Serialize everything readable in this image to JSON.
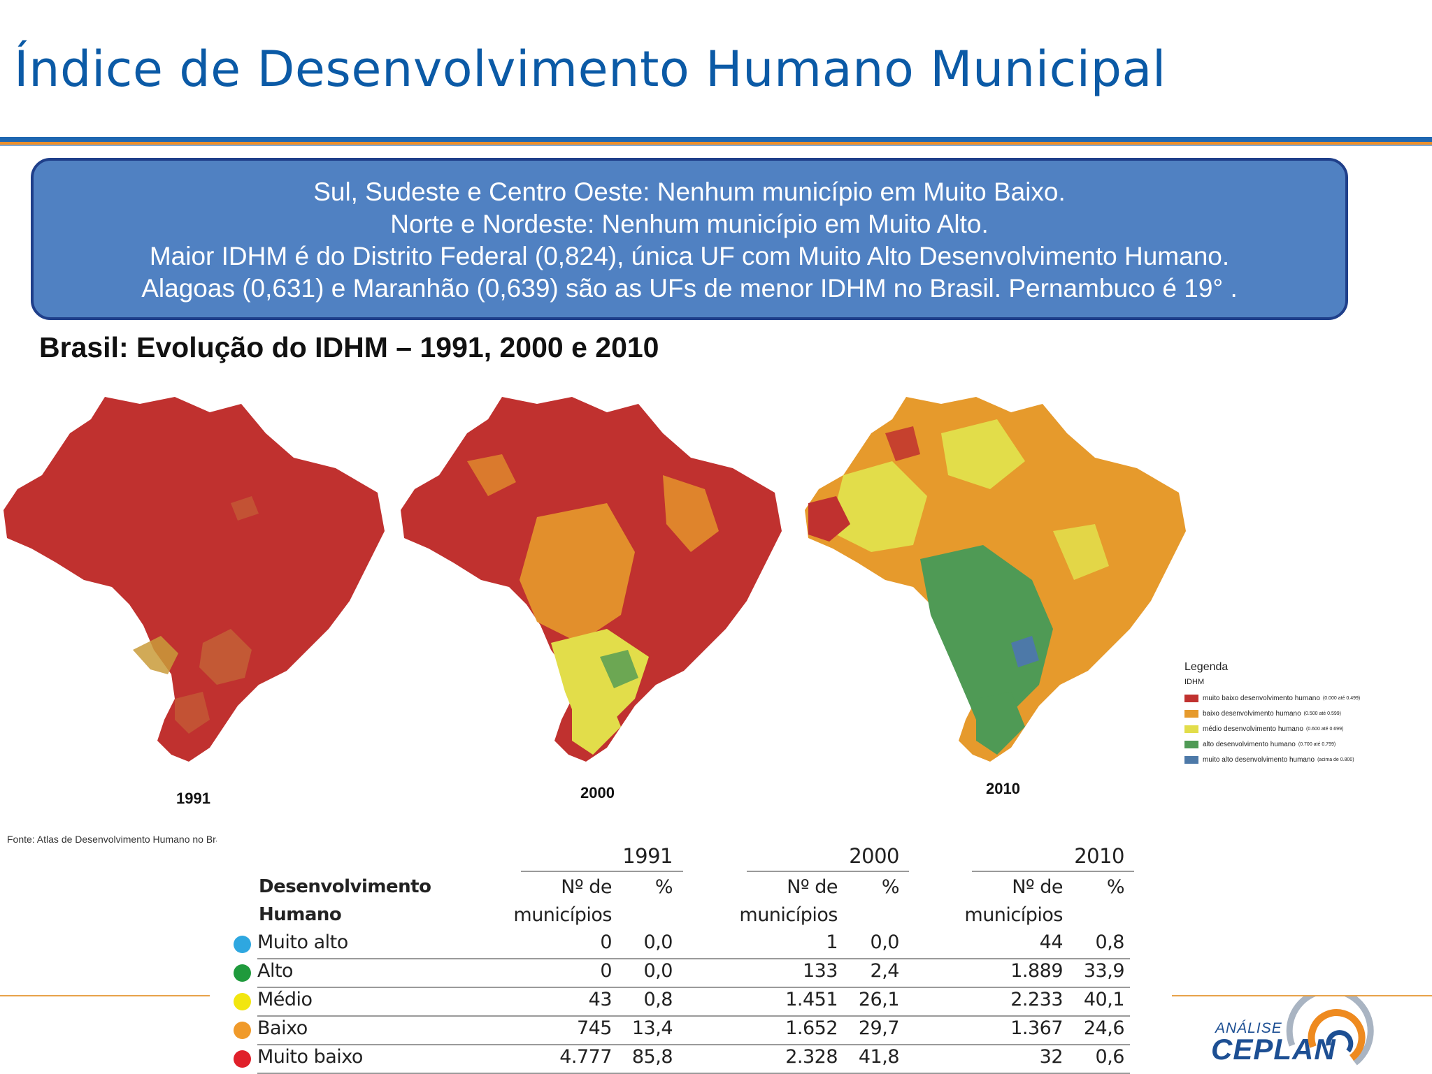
{
  "title": "Índice de Desenvolvimento Humano Municipal",
  "callout": {
    "lines": [
      "Sul, Sudeste e Centro Oeste: Nenhum município em Muito Baixo.",
      "Norte e Nordeste:  Nenhum município em Muito Alto.",
      "Maior IDHM é do Distrito Federal (0,824), única UF com Muito Alto Desenvolvimento Humano.",
      "Alagoas (0,631) e Maranhão (0,639) são as UFs de menor IDHM no Brasil. Pernambuco  é 19°  ."
    ]
  },
  "map_heading": "Brasil: Evolução do IDHM – 1991, 2000 e 2010",
  "maps": [
    {
      "year": "1991"
    },
    {
      "year": "2000"
    },
    {
      "year": "2010"
    }
  ],
  "legend": {
    "title": "Legenda",
    "subtitle": "IDHM",
    "items": [
      {
        "label": "muito baixo desenvolvimento humano",
        "range": "(0.000 até 0.499)",
        "color": "#c0312f"
      },
      {
        "label": "baixo desenvolvimento humano",
        "range": "(0.500 até 0.599)",
        "color": "#e69a2c"
      },
      {
        "label": "médio desenvolvimento humano",
        "range": "(0.600 até 0.699)",
        "color": "#e2dd4a"
      },
      {
        "label": "alto desenvolvimento humano",
        "range": "(0.700 até 0.799)",
        "color": "#4f9a55"
      },
      {
        "label": "muito alto desenvolvimento humano",
        "range": "(acima de 0.800)",
        "color": "#4d79a8"
      }
    ]
  },
  "source": "Fonte: Atlas de Desenvolvimento Humano no Brasi",
  "table": {
    "row_header_line1": "Desenvolvimento",
    "row_header_line2": "Humano",
    "years": [
      "1991",
      "2000",
      "2010"
    ],
    "count_header_line1": "Nº de",
    "count_header_line2": "municípios",
    "pct_header": "%",
    "rows": [
      {
        "label": "Muito alto",
        "color": "#2ea7e0",
        "values": [
          "0",
          "0,0",
          "1",
          "0,0",
          "44",
          "0,8"
        ]
      },
      {
        "label": "Alto",
        "color": "#1f9a3c",
        "values": [
          "0",
          "0,0",
          "133",
          "2,4",
          "1.889",
          "33,9"
        ]
      },
      {
        "label": "Médio",
        "color": "#f2e60f",
        "values": [
          "43",
          "0,8",
          "1.451",
          "26,1",
          "2.233",
          "40,1"
        ]
      },
      {
        "label": "Baixo",
        "color": "#f09a2a",
        "values": [
          "745",
          "13,4",
          "1.652",
          "29,7",
          "1.367",
          "24,6"
        ]
      },
      {
        "label": "Muito baixo",
        "color": "#e0202a",
        "values": [
          "4.777",
          "85,8",
          "2.328",
          "41,8",
          "32",
          "0,6"
        ]
      }
    ]
  },
  "logo": {
    "small": "ANÁLISE",
    "big": "CEPLAN"
  }
}
